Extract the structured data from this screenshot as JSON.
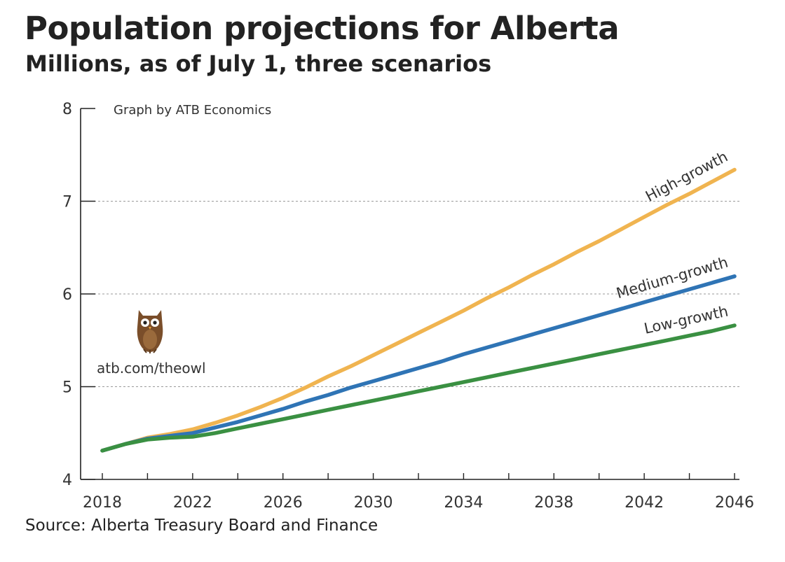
{
  "chart_data": {
    "type": "line",
    "title": "Population projections for Alberta",
    "subtitle": "Millions, as of July 1, three scenarios",
    "credit": "Graph by ATB Economics",
    "branding": {
      "url": "atb.com/theowl",
      "icon": "owl-icon"
    },
    "source": "Source: Alberta Treasury Board and Finance",
    "xlim": [
      2018,
      2046
    ],
    "ylim": [
      4,
      8
    ],
    "x_ticks": [
      2018,
      2022,
      2026,
      2030,
      2034,
      2038,
      2042,
      2046
    ],
    "y_ticks": [
      4,
      5,
      6,
      7,
      8
    ],
    "grid": "horizontal dotted",
    "legend": "inline labels at line ends",
    "x": [
      2018,
      2019,
      2020,
      2021,
      2022,
      2023,
      2024,
      2025,
      2026,
      2027,
      2028,
      2029,
      2030,
      2031,
      2032,
      2033,
      2034,
      2035,
      2036,
      2037,
      2038,
      2039,
      2040,
      2041,
      2042,
      2043,
      2044,
      2045,
      2046
    ],
    "series": [
      {
        "name": "High-growth",
        "color": "#f0b450",
        "values": [
          4.31,
          4.38,
          4.45,
          4.49,
          4.54,
          4.61,
          4.69,
          4.78,
          4.88,
          4.99,
          5.11,
          5.22,
          5.34,
          5.46,
          5.58,
          5.7,
          5.82,
          5.95,
          6.07,
          6.2,
          6.32,
          6.45,
          6.57,
          6.7,
          6.83,
          6.96,
          7.08,
          7.21,
          7.34
        ]
      },
      {
        "name": "Medium-growth",
        "color": "#2f74b5",
        "values": [
          4.31,
          4.38,
          4.44,
          4.47,
          4.5,
          4.56,
          4.62,
          4.69,
          4.76,
          4.84,
          4.91,
          4.99,
          5.06,
          5.13,
          5.2,
          5.27,
          5.35,
          5.42,
          5.49,
          5.56,
          5.63,
          5.7,
          5.77,
          5.84,
          5.91,
          5.98,
          6.05,
          6.12,
          6.19
        ]
      },
      {
        "name": "Low-growth",
        "color": "#3a9042",
        "values": [
          4.31,
          4.38,
          4.43,
          4.45,
          4.46,
          4.5,
          4.55,
          4.6,
          4.65,
          4.7,
          4.75,
          4.8,
          4.85,
          4.9,
          4.95,
          5.0,
          5.05,
          5.1,
          5.15,
          5.2,
          5.25,
          5.3,
          5.35,
          5.4,
          5.45,
          5.5,
          5.55,
          5.6,
          5.66
        ]
      }
    ]
  }
}
